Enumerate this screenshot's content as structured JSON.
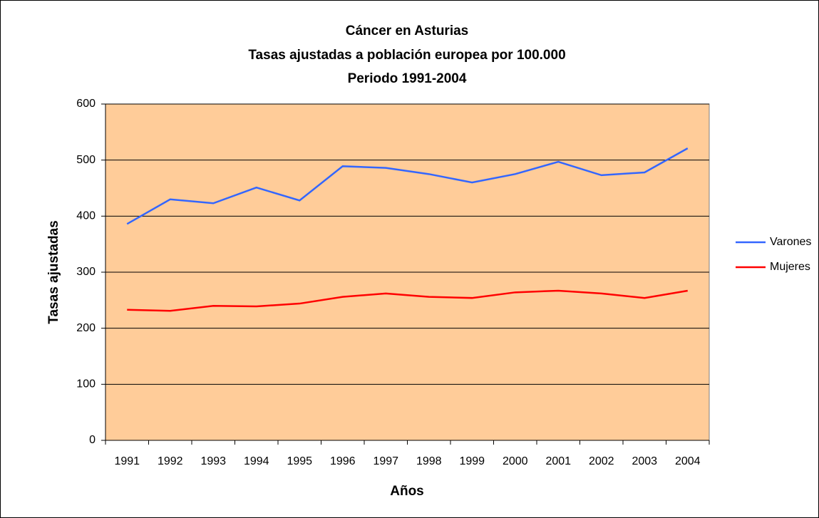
{
  "chart_data": {
    "type": "line",
    "title": [
      "Cáncer en Asturias",
      "Tasas ajustadas a población europea por 100.000",
      "Periodo 1991-2004"
    ],
    "x_label": "Años",
    "y_label": "Tasas ajustadas",
    "categories": [
      "1991",
      "1992",
      "1993",
      "1994",
      "1995",
      "1996",
      "1997",
      "1998",
      "1999",
      "2000",
      "2001",
      "2002",
      "2003",
      "2004"
    ],
    "series": [
      {
        "name": "Varones",
        "color": "#3366ff",
        "values": [
          386,
          430,
          423,
          451,
          428,
          489,
          486,
          475,
          460,
          475,
          497,
          473,
          478,
          521
        ]
      },
      {
        "name": "Mujeres",
        "color": "#ff0000",
        "values": [
          233,
          231,
          240,
          239,
          244,
          256,
          262,
          256,
          254,
          264,
          267,
          262,
          254,
          267
        ]
      }
    ],
    "ylim": [
      0,
      600
    ],
    "yticks": [
      0,
      100,
      200,
      300,
      400,
      500,
      600
    ],
    "grid": true,
    "legend": "right",
    "plot_background": "#ffcc99"
  }
}
